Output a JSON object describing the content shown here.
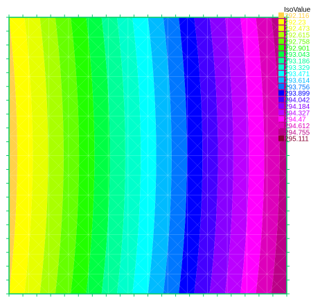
{
  "chart_data": {
    "type": "heatmap",
    "title": "",
    "legend_title": "IsoValue",
    "legend_position": "top-right",
    "x_range": [
      0,
      1
    ],
    "y_range": [
      0,
      1
    ],
    "field": "isovalue bands increasing left to right with slight curvature; mesh triangulation overlay",
    "levels": [
      {
        "value": "292.116",
        "color": "#ffd24a"
      },
      {
        "value": "292.23",
        "color": "#ffff00"
      },
      {
        "value": "292.473",
        "color": "#e6ff00"
      },
      {
        "value": "292.615",
        "color": "#aaff00"
      },
      {
        "value": "292.758",
        "color": "#66ff00"
      },
      {
        "value": "292.901",
        "color": "#22ff00"
      },
      {
        "value": "293.043",
        "color": "#00ff44"
      },
      {
        "value": "293.186",
        "color": "#00ff99"
      },
      {
        "value": "293.329",
        "color": "#00ffcc"
      },
      {
        "value": "293.471",
        "color": "#00ffff"
      },
      {
        "value": "293.614",
        "color": "#00bbff"
      },
      {
        "value": "293.756",
        "color": "#0077ff"
      },
      {
        "value": "293.899",
        "color": "#0000ff"
      },
      {
        "value": "294.042",
        "color": "#4400ff"
      },
      {
        "value": "294.184",
        "color": "#8800ff"
      },
      {
        "value": "294.327",
        "color": "#bb00ff"
      },
      {
        "value": "294.47",
        "color": "#ff00ff"
      },
      {
        "value": "294.612",
        "color": "#dd00bb"
      },
      {
        "value": "294.755",
        "color": "#bb0088"
      },
      {
        "value": "295.111",
        "color": "#880033"
      }
    ]
  }
}
